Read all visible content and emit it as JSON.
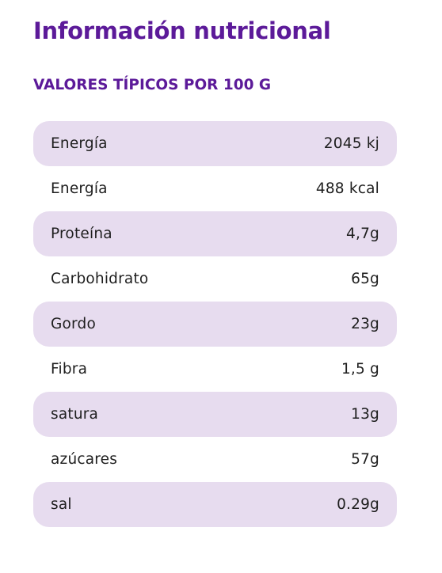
{
  "header": {
    "title": "Información nutricional",
    "subtitle": "VALORES TÍPICOS POR 100 G"
  },
  "colors": {
    "heading": "#5c1a99",
    "row_shade": "#e7dcef",
    "text": "#1e1e1e"
  },
  "table": {
    "rows": [
      {
        "label": "Energía",
        "value": "2045 kj"
      },
      {
        "label": "Energía",
        "value": "488 kcal"
      },
      {
        "label": "Proteína",
        "value": "4,7g"
      },
      {
        "label": "Carbohidrato",
        "value": "65g"
      },
      {
        "label": "Gordo",
        "value": "23g"
      },
      {
        "label": "Fibra",
        "value": "1,5 g"
      },
      {
        "label": "satura",
        "value": "13g"
      },
      {
        "label": "azúcares",
        "value": "57g"
      },
      {
        "label": "sal",
        "value": "0.29g"
      }
    ]
  }
}
